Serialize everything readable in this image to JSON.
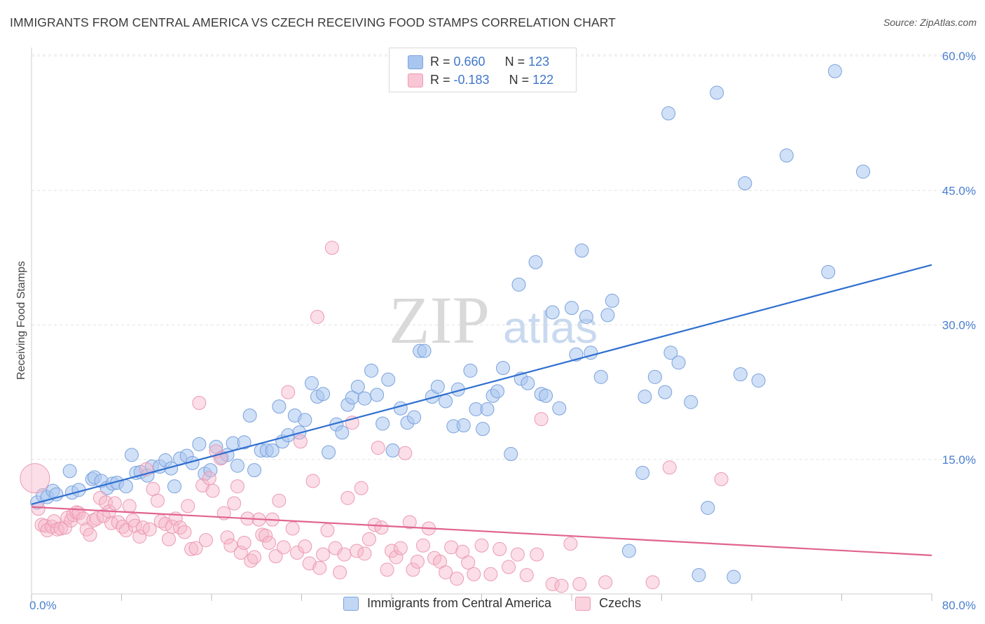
{
  "header": {
    "title": "IMMIGRANTS FROM CENTRAL AMERICA VS CZECH RECEIVING FOOD STAMPS CORRELATION CHART",
    "source": "Source: ZipAtlas.com"
  },
  "watermark": {
    "zip": "ZIP",
    "atlas": "atlas"
  },
  "legend": {
    "rows": [
      {
        "r_label": "R = ",
        "r_value": "0.660",
        "n_label": "N = ",
        "n_value": "123",
        "color": "#a9c6f0"
      },
      {
        "r_label": "R = ",
        "r_value": "-0.183",
        "n_label": "N = ",
        "n_value": "122",
        "color": "#f6b6c9"
      }
    ]
  },
  "chart_data": {
    "type": "scatter",
    "title": "IMMIGRANTS FROM CENTRAL AMERICA VS CZECH RECEIVING FOOD STAMPS CORRELATION CHART",
    "xlabel": "",
    "ylabel": "Receiving Food Stamps",
    "xlim": [
      0,
      80
    ],
    "ylim": [
      0,
      60
    ],
    "x_tick_labels": [
      "0.0%",
      "80.0%"
    ],
    "y_ticks": [
      15,
      30,
      45,
      60
    ],
    "y_tick_labels": [
      "15.0%",
      "30.0%",
      "45.0%",
      "60.0%"
    ],
    "grid": true,
    "legend_position": "top-center",
    "series": [
      {
        "name": "Immigrants from Central America",
        "color": "#8ab2e8",
        "line_color": "#2f6fd0",
        "trend": {
          "x": [
            0,
            80
          ],
          "y": [
            10.0,
            36.7
          ]
        },
        "points": [
          [
            0.5,
            10.2
          ],
          [
            1.0,
            11.0
          ],
          [
            1.4,
            10.8
          ],
          [
            1.9,
            11.5
          ],
          [
            2.2,
            11.1
          ],
          [
            3.4,
            13.7
          ],
          [
            3.6,
            11.3
          ],
          [
            4.2,
            11.6
          ],
          [
            5.4,
            12.8
          ],
          [
            5.6,
            13.0
          ],
          [
            6.2,
            12.6
          ],
          [
            6.7,
            11.8
          ],
          [
            7.2,
            12.3
          ],
          [
            7.6,
            12.4
          ],
          [
            8.4,
            12.0
          ],
          [
            8.9,
            15.5
          ],
          [
            9.3,
            13.5
          ],
          [
            9.7,
            13.6
          ],
          [
            10.3,
            13.2
          ],
          [
            10.7,
            14.2
          ],
          [
            11.4,
            14.2
          ],
          [
            11.9,
            14.9
          ],
          [
            12.4,
            14.0
          ],
          [
            12.7,
            12.0
          ],
          [
            13.2,
            15.1
          ],
          [
            13.8,
            15.4
          ],
          [
            14.3,
            14.6
          ],
          [
            14.9,
            16.7
          ],
          [
            15.4,
            13.4
          ],
          [
            15.9,
            13.8
          ],
          [
            16.4,
            16.4
          ],
          [
            16.9,
            15.2
          ],
          [
            17.4,
            15.5
          ],
          [
            17.9,
            16.8
          ],
          [
            18.3,
            14.3
          ],
          [
            18.9,
            16.9
          ],
          [
            19.4,
            19.9
          ],
          [
            19.8,
            13.8
          ],
          [
            20.4,
            16.0
          ],
          [
            20.9,
            16.0
          ],
          [
            21.4,
            16.0
          ],
          [
            22.0,
            20.9
          ],
          [
            22.3,
            17.0
          ],
          [
            22.8,
            17.7
          ],
          [
            23.4,
            19.9
          ],
          [
            23.8,
            18.0
          ],
          [
            24.3,
            19.4
          ],
          [
            24.9,
            23.5
          ],
          [
            25.4,
            22.0
          ],
          [
            25.9,
            22.3
          ],
          [
            26.4,
            15.8
          ],
          [
            27.1,
            18.9
          ],
          [
            27.6,
            18.0
          ],
          [
            28.1,
            21.1
          ],
          [
            28.5,
            21.9
          ],
          [
            29.0,
            23.1
          ],
          [
            29.6,
            21.8
          ],
          [
            30.2,
            24.9
          ],
          [
            30.7,
            22.2
          ],
          [
            31.2,
            19.0
          ],
          [
            31.7,
            23.9
          ],
          [
            32.1,
            16.0
          ],
          [
            32.8,
            20.7
          ],
          [
            33.4,
            19.1
          ],
          [
            34.0,
            19.7
          ],
          [
            34.5,
            27.1
          ],
          [
            34.9,
            27.1
          ],
          [
            35.6,
            22.0
          ],
          [
            36.1,
            23.1
          ],
          [
            36.8,
            21.5
          ],
          [
            37.5,
            18.7
          ],
          [
            37.9,
            22.8
          ],
          [
            38.4,
            18.8
          ],
          [
            39.0,
            24.9
          ],
          [
            39.5,
            20.6
          ],
          [
            40.1,
            18.4
          ],
          [
            40.5,
            20.6
          ],
          [
            41.0,
            22.1
          ],
          [
            41.4,
            22.6
          ],
          [
            41.9,
            25.2
          ],
          [
            42.6,
            15.6
          ],
          [
            43.3,
            34.5
          ],
          [
            43.5,
            24.0
          ],
          [
            44.1,
            23.5
          ],
          [
            44.8,
            37.0
          ],
          [
            45.3,
            22.3
          ],
          [
            45.7,
            22.1
          ],
          [
            46.3,
            31.4
          ],
          [
            46.9,
            20.7
          ],
          [
            48.0,
            31.9
          ],
          [
            48.4,
            26.7
          ],
          [
            48.9,
            38.3
          ],
          [
            49.3,
            30.9
          ],
          [
            49.7,
            26.9
          ],
          [
            50.6,
            24.2
          ],
          [
            51.2,
            31.1
          ],
          [
            51.6,
            32.7
          ],
          [
            53.1,
            4.8
          ],
          [
            54.3,
            13.5
          ],
          [
            54.5,
            22.0
          ],
          [
            55.4,
            24.2
          ],
          [
            56.3,
            22.5
          ],
          [
            56.6,
            53.6
          ],
          [
            56.8,
            26.9
          ],
          [
            57.5,
            25.8
          ],
          [
            58.6,
            21.4
          ],
          [
            59.3,
            2.1
          ],
          [
            60.1,
            9.6
          ],
          [
            60.9,
            55.9
          ],
          [
            62.4,
            1.9
          ],
          [
            63.0,
            24.5
          ],
          [
            63.4,
            45.8
          ],
          [
            64.6,
            23.8
          ],
          [
            67.1,
            48.9
          ],
          [
            70.8,
            35.9
          ],
          [
            71.4,
            58.3
          ],
          [
            73.9,
            47.1
          ]
        ]
      },
      {
        "name": "Czechs",
        "color": "#f3a7bf",
        "line_color": "#e0638f",
        "trend": {
          "x": [
            0,
            80
          ],
          "y": [
            9.7,
            4.3
          ]
        },
        "points": [
          [
            0.3,
            12.9
          ],
          [
            0.6,
            9.5
          ],
          [
            0.9,
            7.7
          ],
          [
            1.2,
            7.6
          ],
          [
            1.4,
            7.1
          ],
          [
            1.8,
            7.5
          ],
          [
            2.0,
            8.1
          ],
          [
            2.3,
            7.2
          ],
          [
            2.6,
            7.3
          ],
          [
            3.0,
            7.4
          ],
          [
            3.2,
            8.5
          ],
          [
            3.5,
            8.2
          ],
          [
            3.7,
            8.8
          ],
          [
            4.0,
            9.1
          ],
          [
            4.2,
            9.0
          ],
          [
            4.6,
            8.4
          ],
          [
            4.9,
            7.2
          ],
          [
            5.2,
            6.6
          ],
          [
            5.5,
            8.2
          ],
          [
            5.8,
            8.4
          ],
          [
            6.1,
            10.7
          ],
          [
            6.4,
            8.7
          ],
          [
            6.6,
            10.2
          ],
          [
            6.9,
            9.2
          ],
          [
            7.1,
            7.9
          ],
          [
            7.4,
            10.1
          ],
          [
            7.7,
            8.0
          ],
          [
            8.1,
            7.5
          ],
          [
            8.4,
            7.1
          ],
          [
            8.7,
            9.8
          ],
          [
            9.0,
            8.2
          ],
          [
            9.2,
            7.6
          ],
          [
            9.6,
            6.4
          ],
          [
            9.9,
            7.4
          ],
          [
            10.2,
            13.9
          ],
          [
            10.5,
            7.2
          ],
          [
            10.8,
            11.7
          ],
          [
            11.2,
            10.4
          ],
          [
            11.5,
            8.1
          ],
          [
            11.9,
            7.8
          ],
          [
            12.2,
            6.1
          ],
          [
            12.5,
            7.5
          ],
          [
            12.8,
            8.4
          ],
          [
            13.2,
            7.4
          ],
          [
            13.6,
            6.9
          ],
          [
            13.9,
            9.8
          ],
          [
            14.2,
            5.0
          ],
          [
            14.6,
            5.1
          ],
          [
            14.9,
            21.3
          ],
          [
            15.2,
            12.1
          ],
          [
            15.5,
            6.0
          ],
          [
            15.8,
            12.9
          ],
          [
            16.1,
            11.5
          ],
          [
            16.4,
            15.9
          ],
          [
            16.8,
            15.1
          ],
          [
            17.1,
            9.0
          ],
          [
            17.4,
            6.3
          ],
          [
            17.7,
            5.4
          ],
          [
            18.0,
            10.1
          ],
          [
            18.3,
            12.0
          ],
          [
            18.6,
            4.6
          ],
          [
            18.9,
            5.7
          ],
          [
            19.2,
            8.4
          ],
          [
            19.5,
            3.7
          ],
          [
            19.8,
            4.1
          ],
          [
            20.2,
            8.3
          ],
          [
            20.5,
            6.6
          ],
          [
            20.8,
            6.5
          ],
          [
            21.1,
            5.7
          ],
          [
            21.4,
            8.3
          ],
          [
            21.7,
            4.2
          ],
          [
            22.0,
            10.4
          ],
          [
            22.4,
            5.2
          ],
          [
            22.8,
            22.5
          ],
          [
            23.2,
            7.3
          ],
          [
            23.6,
            4.6
          ],
          [
            23.9,
            17.0
          ],
          [
            24.3,
            5.3
          ],
          [
            24.7,
            3.4
          ],
          [
            25.0,
            12.6
          ],
          [
            25.4,
            30.9
          ],
          [
            25.6,
            2.9
          ],
          [
            25.9,
            4.4
          ],
          [
            26.3,
            7.1
          ],
          [
            26.7,
            38.6
          ],
          [
            27.0,
            5.1
          ],
          [
            27.4,
            2.4
          ],
          [
            27.8,
            4.4
          ],
          [
            28.1,
            10.7
          ],
          [
            28.5,
            19.1
          ],
          [
            28.9,
            4.8
          ],
          [
            29.3,
            11.8
          ],
          [
            29.6,
            4.5
          ],
          [
            30.0,
            6.1
          ],
          [
            30.5,
            7.7
          ],
          [
            30.8,
            16.3
          ],
          [
            31.1,
            7.4
          ],
          [
            31.6,
            2.7
          ],
          [
            32.0,
            4.8
          ],
          [
            32.4,
            4.1
          ],
          [
            32.8,
            5.1
          ],
          [
            33.2,
            15.7
          ],
          [
            33.6,
            8.0
          ],
          [
            33.9,
            2.7
          ],
          [
            34.3,
            3.6
          ],
          [
            34.8,
            5.4
          ],
          [
            35.3,
            7.3
          ],
          [
            35.8,
            4.0
          ],
          [
            36.3,
            3.6
          ],
          [
            36.8,
            2.4
          ],
          [
            37.3,
            5.2
          ],
          [
            37.8,
            1.7
          ],
          [
            38.3,
            4.7
          ],
          [
            38.8,
            3.5
          ],
          [
            39.3,
            2.2
          ],
          [
            40.0,
            5.4
          ],
          [
            40.8,
            2.2
          ],
          [
            41.6,
            5.0
          ],
          [
            42.4,
            3.0
          ],
          [
            43.2,
            4.4
          ],
          [
            44.0,
            2.1
          ],
          [
            44.9,
            4.4
          ],
          [
            45.3,
            19.5
          ],
          [
            46.3,
            1.1
          ],
          [
            47.1,
            0.9
          ],
          [
            47.9,
            5.6
          ],
          [
            48.7,
            1.1
          ],
          [
            51.0,
            1.3
          ],
          [
            55.2,
            1.3
          ],
          [
            56.7,
            14.1
          ],
          [
            61.3,
            12.8
          ]
        ]
      }
    ]
  }
}
